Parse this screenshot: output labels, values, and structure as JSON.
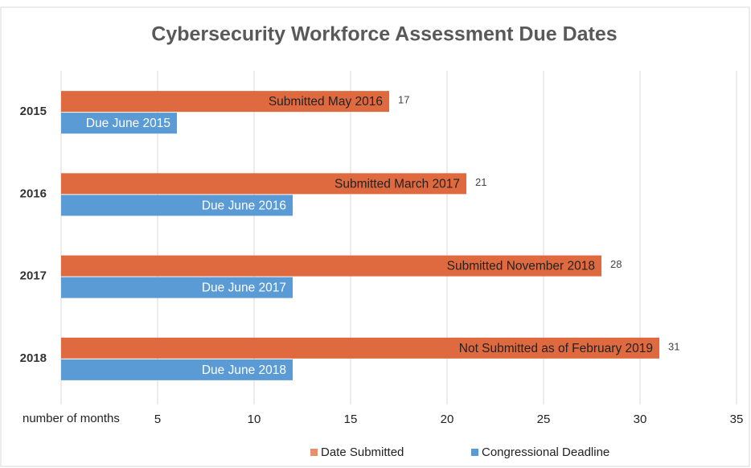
{
  "chart_data": {
    "type": "bar",
    "orientation": "horizontal",
    "title": "Cybersecurity Workforce Assessment Due Dates",
    "x_label": "number of months",
    "categories": [
      "2015",
      "2016",
      "2017",
      "2018"
    ],
    "series": [
      {
        "name": "Date Submitted",
        "color": "#e06a3f",
        "values": [
          17,
          21,
          28,
          31
        ],
        "labels": [
          "Submitted May 2016",
          "Submitted March 2017",
          "Submitted November 2018",
          "Not Submitted as of February 2019"
        ]
      },
      {
        "name": "Congressional Deadline",
        "color": "#5b9bd5",
        "values": [
          6,
          12,
          12,
          12
        ],
        "labels": [
          "Due June 2015",
          "Due June 2016",
          "Due June 2017",
          "Due June 2018"
        ]
      }
    ],
    "xlim": [
      0,
      35
    ],
    "xticks": [
      5,
      10,
      15,
      20,
      25,
      30,
      35
    ],
    "grid": true,
    "legend": "bottom"
  }
}
